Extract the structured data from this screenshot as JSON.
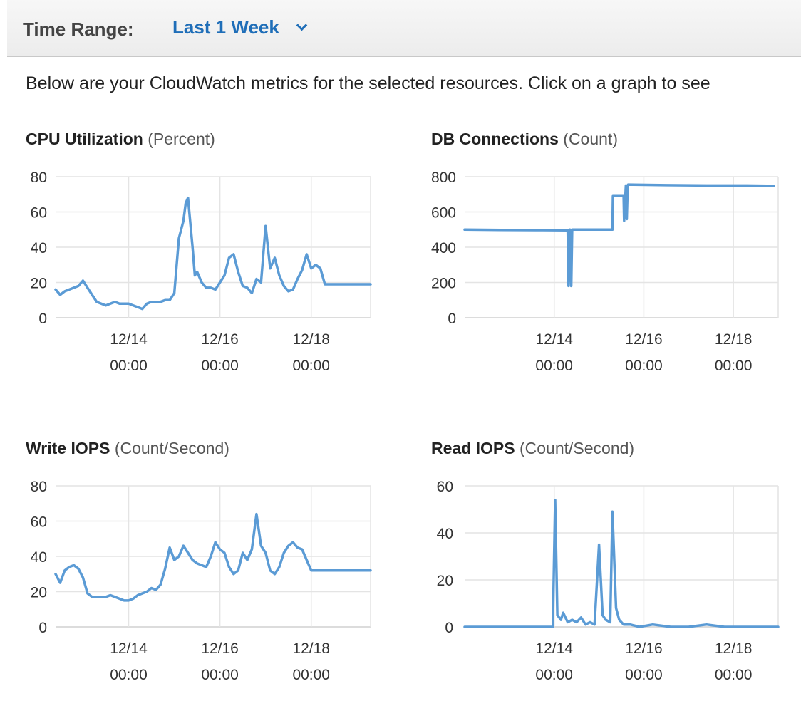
{
  "header": {
    "time_range_label": "Time Range:",
    "time_range_value": "Last 1 Week"
  },
  "intro_text": "Below are your CloudWatch metrics for the selected resources. Click on a graph to see",
  "colors": {
    "line": "#5b9bd5",
    "grid": "#e4e4e4",
    "axis": "#d0d0d0",
    "link": "#1f6eb8"
  },
  "icons": {
    "dropdown": "chevron-down-icon"
  },
  "chart_data": [
    {
      "type": "line",
      "title": "CPU Utilization",
      "unit": "(Percent)",
      "xlabel": "",
      "ylabel": "",
      "ylim": [
        0,
        80
      ],
      "yticks": [
        "0",
        "20",
        "40",
        "60",
        "80"
      ],
      "xlim": [
        12.4,
        19.3
      ],
      "xtick_dates": [
        "12/14",
        "12/16",
        "12/18"
      ],
      "xtick_times": [
        "00:00",
        "00:00",
        "00:00"
      ],
      "xtick_positions": [
        14,
        16,
        18
      ],
      "grid": true,
      "x": [
        12.4,
        12.5,
        12.6,
        12.7,
        12.8,
        12.9,
        13.0,
        13.1,
        13.2,
        13.3,
        13.4,
        13.5,
        13.6,
        13.7,
        13.8,
        13.9,
        14.0,
        14.1,
        14.2,
        14.3,
        14.4,
        14.5,
        14.6,
        14.7,
        14.8,
        14.9,
        15.0,
        15.1,
        15.2,
        15.25,
        15.3,
        15.4,
        15.45,
        15.5,
        15.6,
        15.7,
        15.8,
        15.9,
        16.0,
        16.1,
        16.2,
        16.3,
        16.4,
        16.5,
        16.6,
        16.7,
        16.8,
        16.9,
        17.0,
        17.1,
        17.2,
        17.3,
        17.4,
        17.5,
        17.6,
        17.7,
        17.8,
        17.9,
        18.0,
        18.1,
        18.2,
        18.3,
        18.4,
        18.5,
        18.6,
        18.7,
        18.8,
        18.9,
        19.0,
        19.1,
        19.2,
        19.3
      ],
      "y": [
        16,
        13,
        15,
        16,
        17,
        18,
        21,
        17,
        13,
        9,
        8,
        7,
        8,
        9,
        8,
        8,
        8,
        7,
        6,
        5,
        8,
        9,
        9,
        9,
        10,
        10,
        14,
        45,
        55,
        65,
        68,
        40,
        24,
        26,
        20,
        17,
        17,
        16,
        20,
        24,
        34,
        36,
        26,
        18,
        17,
        14,
        22,
        20,
        52,
        28,
        34,
        24,
        18,
        15,
        16,
        22,
        27,
        36,
        28,
        30,
        28,
        19,
        19,
        19,
        19,
        19,
        19,
        19,
        19,
        19,
        19,
        19
      ]
    },
    {
      "type": "line",
      "title": "DB Connections",
      "unit": "(Count)",
      "xlabel": "",
      "ylabel": "",
      "ylim": [
        0,
        800
      ],
      "yticks": [
        "0",
        "200",
        "400",
        "600",
        "800"
      ],
      "xlim": [
        12.0,
        19.0
      ],
      "xtick_dates": [
        "12/14",
        "12/16",
        "12/18"
      ],
      "xtick_times": [
        "00:00",
        "00:00",
        "00:00"
      ],
      "xtick_positions": [
        14,
        16,
        18
      ],
      "grid": true,
      "x": [
        12.0,
        12.8,
        13.6,
        14.3,
        14.32,
        14.35,
        14.38,
        14.4,
        15.3,
        15.31,
        15.55,
        15.56,
        15.6,
        15.62,
        15.64,
        15.65,
        16.5,
        17.4,
        18.3,
        18.9
      ],
      "y": [
        500,
        498,
        497,
        496,
        180,
        500,
        180,
        500,
        500,
        690,
        690,
        550,
        750,
        560,
        750,
        755,
        752,
        750,
        750,
        748
      ]
    },
    {
      "type": "line",
      "title": "Write IOPS",
      "unit": "(Count/Second)",
      "xlabel": "",
      "ylabel": "",
      "ylim": [
        0,
        80
      ],
      "yticks": [
        "0",
        "20",
        "40",
        "60",
        "80"
      ],
      "xlim": [
        12.4,
        19.3
      ],
      "xtick_dates": [
        "12/14",
        "12/16",
        "12/18"
      ],
      "xtick_times": [
        "00:00",
        "00:00",
        "00:00"
      ],
      "xtick_positions": [
        14,
        16,
        18
      ],
      "grid": true,
      "x": [
        12.4,
        12.5,
        12.6,
        12.7,
        12.8,
        12.9,
        13.0,
        13.1,
        13.2,
        13.3,
        13.4,
        13.5,
        13.6,
        13.7,
        13.8,
        13.9,
        14.0,
        14.1,
        14.2,
        14.3,
        14.4,
        14.5,
        14.6,
        14.7,
        14.8,
        14.9,
        15.0,
        15.1,
        15.2,
        15.3,
        15.4,
        15.5,
        15.6,
        15.7,
        15.8,
        15.9,
        16.0,
        16.1,
        16.2,
        16.3,
        16.4,
        16.5,
        16.6,
        16.7,
        16.8,
        16.9,
        17.0,
        17.1,
        17.2,
        17.3,
        17.4,
        17.5,
        17.6,
        17.7,
        17.8,
        17.9,
        18.0,
        18.1,
        18.2,
        18.3,
        18.4,
        18.5,
        18.6,
        18.7,
        18.8,
        18.9,
        19.0,
        19.1,
        19.2,
        19.3
      ],
      "y": [
        30,
        25,
        32,
        34,
        35,
        33,
        28,
        19,
        17,
        17,
        17,
        17,
        18,
        17,
        16,
        15,
        15,
        16,
        18,
        19,
        20,
        22,
        21,
        24,
        33,
        45,
        38,
        40,
        46,
        42,
        38,
        36,
        35,
        34,
        40,
        48,
        44,
        42,
        34,
        30,
        32,
        42,
        38,
        44,
        64,
        46,
        42,
        32,
        30,
        34,
        42,
        46,
        48,
        45,
        44,
        38,
        32,
        32,
        32,
        32,
        32,
        32,
        32,
        32,
        32,
        32,
        32,
        32,
        32,
        32
      ]
    },
    {
      "type": "line",
      "title": "Read IOPS",
      "unit": "(Count/Second)",
      "xlabel": "",
      "ylabel": "",
      "ylim": [
        0,
        60
      ],
      "yticks": [
        "0",
        "20",
        "40",
        "60"
      ],
      "xlim": [
        12.0,
        19.0
      ],
      "xtick_dates": [
        "12/14",
        "12/16",
        "12/18"
      ],
      "xtick_times": [
        "00:00",
        "00:00",
        "00:00"
      ],
      "xtick_positions": [
        14,
        16,
        18
      ],
      "grid": true,
      "x": [
        12.0,
        12.5,
        13.0,
        13.5,
        13.85,
        13.97,
        14.02,
        14.07,
        14.15,
        14.2,
        14.3,
        14.4,
        14.5,
        14.6,
        14.7,
        14.8,
        14.9,
        15.0,
        15.08,
        15.15,
        15.25,
        15.3,
        15.38,
        15.45,
        15.55,
        15.7,
        15.9,
        16.2,
        16.6,
        17.0,
        17.4,
        17.8,
        18.2,
        18.6,
        19.0
      ],
      "y": [
        0,
        0,
        0,
        0,
        0,
        0,
        54,
        5,
        3,
        6,
        2,
        3,
        2,
        4,
        1,
        2,
        1,
        35,
        5,
        3,
        2,
        49,
        8,
        3,
        1,
        1,
        0,
        1,
        0,
        0,
        1,
        0,
        0,
        0,
        0
      ]
    }
  ]
}
